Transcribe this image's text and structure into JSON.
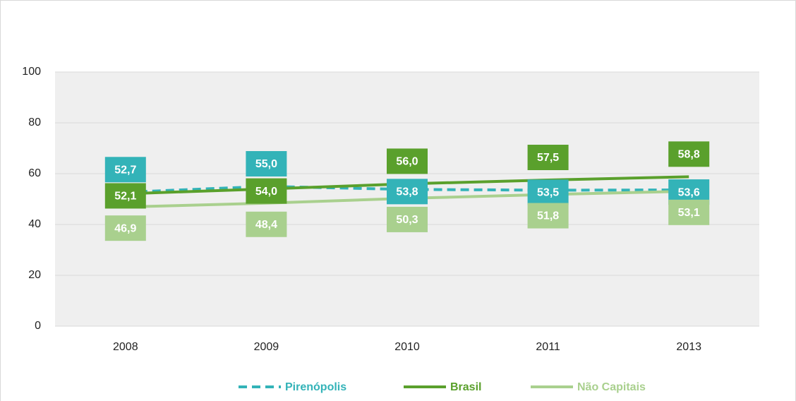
{
  "chart_data": {
    "type": "line",
    "categories": [
      "2008",
      "2009",
      "2010",
      "2011",
      "2013"
    ],
    "series": [
      {
        "name": "Pirenópolis",
        "color": "#33b3b8",
        "dashed": true,
        "values": [
          52.7,
          55.0,
          53.8,
          53.5,
          53.6
        ],
        "value_labels": [
          "52,7",
          "55,0",
          "53,8",
          "53,5",
          "53,6"
        ]
      },
      {
        "name": "Brasil",
        "color": "#5aa02c",
        "values": [
          52.1,
          54.0,
          56.0,
          57.5,
          58.8
        ],
        "value_labels": [
          "52,1",
          "54,0",
          "56,0",
          "57,5",
          "58,8"
        ]
      },
      {
        "name": "Não Capitais",
        "color": "#a9d08e",
        "values": [
          46.9,
          48.4,
          50.3,
          51.8,
          53.1
        ],
        "value_labels": [
          "46,9",
          "48,4",
          "50,3",
          "51,8",
          "53,1"
        ]
      }
    ],
    "ylim": [
      0,
      100
    ],
    "yticks": [
      0,
      20,
      40,
      60,
      80,
      100
    ],
    "grid": true,
    "legend": "bottom"
  }
}
